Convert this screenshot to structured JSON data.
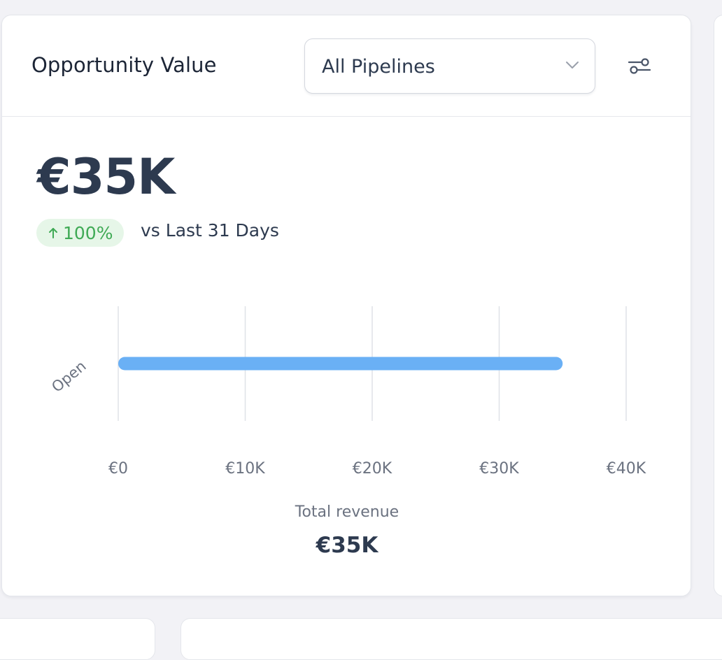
{
  "card": {
    "title": "Opportunity Value",
    "pipeline_select": {
      "selected": "All Pipelines"
    },
    "settings_icon": "sliders-icon",
    "metric": {
      "value": "€35K",
      "delta": "100%",
      "delta_direction": "up",
      "comparison": "vs Last 31 Days"
    },
    "footer": {
      "label": "Total revenue",
      "value": "€35K"
    }
  },
  "colors": {
    "bar": "#6ab0f5",
    "delta_bg": "#e6f6e8",
    "delta_text": "#3faa55",
    "gridline": "#dfe2e7"
  },
  "chart_data": {
    "type": "bar",
    "orientation": "horizontal",
    "categories": [
      "Open"
    ],
    "values": [
      35000
    ],
    "xlim": [
      0,
      40000
    ],
    "xticks": [
      0,
      10000,
      20000,
      30000,
      40000
    ],
    "xtick_labels": [
      "€0",
      "€10K",
      "€20K",
      "€30K",
      "€40K"
    ],
    "grid": true
  }
}
